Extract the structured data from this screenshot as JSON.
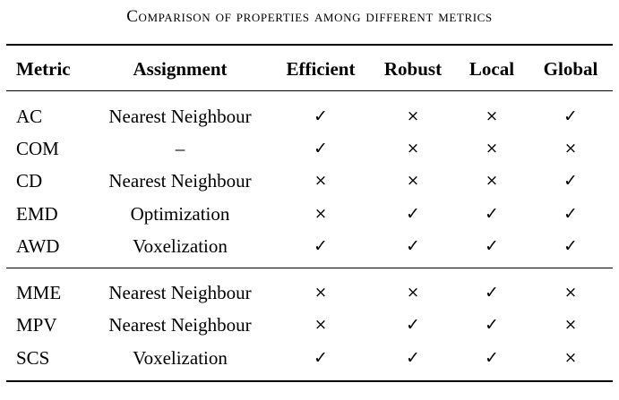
{
  "caption": "Comparison of properties among different metrics",
  "columns": [
    "Metric",
    "Assignment",
    "Efficient",
    "Robust",
    "Local",
    "Global"
  ],
  "symbols": {
    "yes": "✓",
    "no": "×"
  },
  "rows": [
    {
      "metric": "AC",
      "assignment": "Nearest Neighbour",
      "efficient": "✓",
      "robust": "×",
      "local": "×",
      "global": "✓"
    },
    {
      "metric": "COM",
      "assignment": "–",
      "efficient": "✓",
      "robust": "×",
      "local": "×",
      "global": "×"
    },
    {
      "metric": "CD",
      "assignment": "Nearest Neighbour",
      "efficient": "×",
      "robust": "×",
      "local": "×",
      "global": "✓"
    },
    {
      "metric": "EMD",
      "assignment": "Optimization",
      "efficient": "×",
      "robust": "✓",
      "local": "✓",
      "global": "✓"
    },
    {
      "metric": "AWD",
      "assignment": "Voxelization",
      "efficient": "✓",
      "robust": "✓",
      "local": "✓",
      "global": "✓"
    },
    {
      "metric": "MME",
      "assignment": "Nearest Neighbour",
      "efficient": "×",
      "robust": "×",
      "local": "✓",
      "global": "×"
    },
    {
      "metric": "MPV",
      "assignment": "Nearest Neighbour",
      "efficient": "×",
      "robust": "✓",
      "local": "✓",
      "global": "×"
    },
    {
      "metric": "SCS",
      "assignment": "Voxelization",
      "efficient": "✓",
      "robust": "✓",
      "local": "✓",
      "global": "×"
    }
  ]
}
